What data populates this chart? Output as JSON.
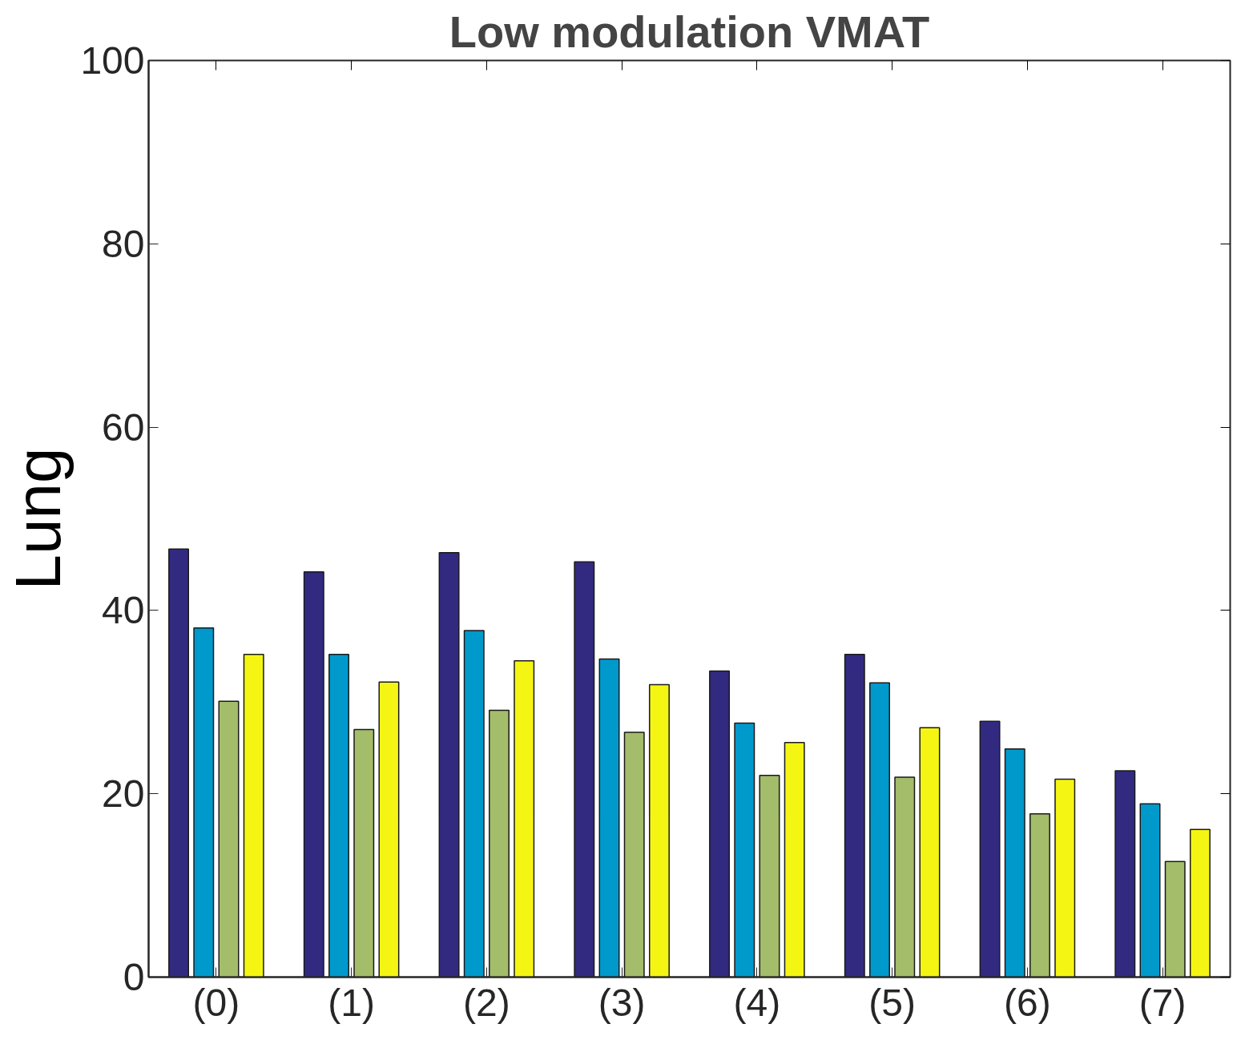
{
  "chart_data": {
    "type": "bar",
    "title": "Low modulation VMAT",
    "ylabel": "Lung",
    "categories": [
      "(0)",
      "(1)",
      "(2)",
      "(3)",
      "(4)",
      "(5)",
      "(6)",
      "(7)"
    ],
    "series": [
      {
        "color": "#312a80",
        "values": [
          46.7,
          44.2,
          46.3,
          45.3,
          33.4,
          35.2,
          27.9,
          22.5
        ]
      },
      {
        "color": "#0099cc",
        "values": [
          38.1,
          35.2,
          37.8,
          34.7,
          27.7,
          32.1,
          24.9,
          18.9
        ]
      },
      {
        "color": "#a3bd6a",
        "values": [
          30.1,
          27.0,
          29.1,
          26.7,
          22.0,
          21.8,
          17.8,
          12.6
        ]
      },
      {
        "color": "#f5f514",
        "values": [
          35.2,
          32.2,
          34.5,
          31.9,
          25.6,
          27.2,
          21.6,
          16.1
        ]
      }
    ],
    "ylim": [
      0,
      100
    ],
    "yticks": [
      0,
      20,
      40,
      60,
      80,
      100
    ]
  }
}
